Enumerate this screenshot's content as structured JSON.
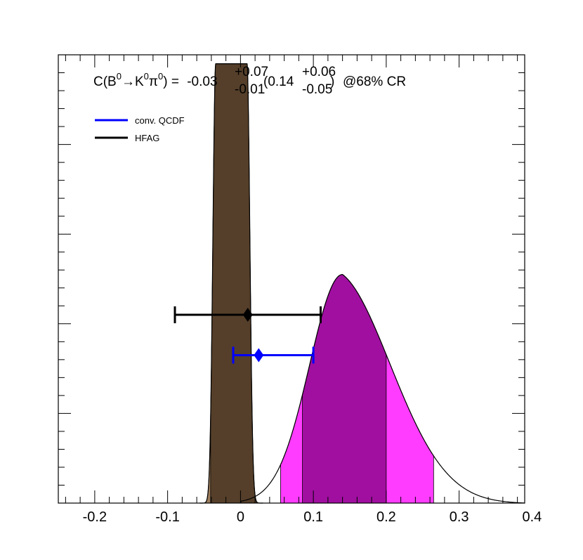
{
  "chart_data": {
    "type": "area",
    "title": {
      "prefix": "C(B",
      "sup1": "0",
      "arrow": "→",
      "k": "K",
      "sup2": "0",
      "pi": "π",
      "sup3": "0",
      "close": ") = ",
      "value": "-0.03",
      "value_up": "+0.07",
      "value_down": "-0.01",
      "open2": " (0.14",
      "value2_up": "+0.06",
      "value2_down": "-0.05",
      "close2": ")",
      "cr": "@68% CR"
    },
    "xlim": [
      -0.25,
      0.39
    ],
    "ylim": [
      0,
      1.0
    ],
    "x_ticks": [
      {
        "v": -0.2,
        "label": "-0.2"
      },
      {
        "v": -0.1,
        "label": "-0.1"
      },
      {
        "v": 0.0,
        "label": "0"
      },
      {
        "v": 0.1,
        "label": "0.1"
      },
      {
        "v": 0.2,
        "label": "0.2"
      },
      {
        "v": 0.3,
        "label": "0.3"
      },
      {
        "v": 0.4,
        "label": "0.4"
      }
    ],
    "legend": {
      "placement": "top-left",
      "entries": [
        {
          "name": "conv. QCDF",
          "color": "#0000ff"
        },
        {
          "name": "HFAG",
          "color": "#000000"
        }
      ]
    },
    "distributions": [
      {
        "id": "qcdf-narrow",
        "shape": "plateau",
        "mu": -0.0125,
        "half": 0.0215,
        "edge": 0.0055,
        "height": 0.98,
        "fill_inner": "#553f2a",
        "fill_outer": "#9c7c5c",
        "inner_band": [
          -0.041,
          0.035
        ],
        "outer_band": [
          -0.048,
          0.04
        ]
      },
      {
        "id": "qcdf-wide",
        "shape": "skewed",
        "peak_x": 0.14,
        "height": 0.51,
        "sigma_left": 0.045,
        "sigma_right": 0.082,
        "tail_power": 0.6,
        "start_x": 0.0,
        "end_x": 0.39,
        "fill_inner": "#a10fa0",
        "fill_outer": "#ff3cff",
        "inner_band": [
          0.085,
          0.2
        ],
        "outer_band": [
          0.055,
          0.265
        ]
      }
    ],
    "error_bars": [
      {
        "name": "HFAG",
        "center": 0.01,
        "low": -0.09,
        "high": 0.11,
        "y": 0.42,
        "color": "#000000"
      },
      {
        "name": "conv. QCDF",
        "center": 0.025,
        "low": -0.01,
        "high": 0.1,
        "y": 0.33,
        "color": "#0000ff"
      }
    ]
  }
}
